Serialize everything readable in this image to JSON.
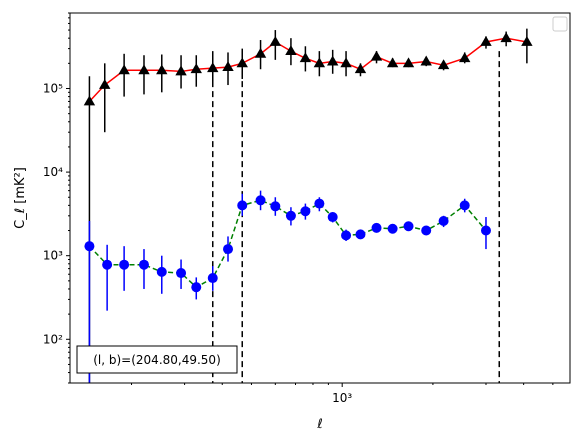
{
  "chart_data": {
    "type": "line",
    "xlabel": "ℓ",
    "ylabel": "C_ℓ  [mK²]",
    "xscale": "log",
    "yscale": "log",
    "xlim": [
      125,
      5700
    ],
    "ylim": [
      30,
      800000
    ],
    "x_ticks": [
      {
        "value": 1000,
        "label": "10³"
      }
    ],
    "y_ticks": [
      {
        "value": 100,
        "label": "10²"
      },
      {
        "value": 1000,
        "label": "10³"
      },
      {
        "value": 10000,
        "label": "10⁴"
      },
      {
        "value": 100000,
        "label": "10⁵"
      }
    ],
    "grid": false,
    "legend": "top-right, empty",
    "annotation": "(l, b)=(204.80,49.50)",
    "vlines": [
      372,
      466,
      3320
    ],
    "series": [
      {
        "color": "#ff0000",
        "marker": "triangle",
        "marker_color": "#000000",
        "errorbar_color": "#000000",
        "line_style": "solid",
        "points": [
          {
            "x": 145,
            "y": 70000,
            "lo": 0,
            "hi": 140000
          },
          {
            "x": 163,
            "y": 110000,
            "lo": 30000,
            "hi": 200000
          },
          {
            "x": 189,
            "y": 165000,
            "lo": 80000,
            "hi": 260000
          },
          {
            "x": 220,
            "y": 165000,
            "lo": 85000,
            "hi": 250000
          },
          {
            "x": 252,
            "y": 165000,
            "lo": 90000,
            "hi": 255000
          },
          {
            "x": 292,
            "y": 160000,
            "lo": 100000,
            "hi": 250000
          },
          {
            "x": 328,
            "y": 170000,
            "lo": 105000,
            "hi": 250000
          },
          {
            "x": 372,
            "y": 175000,
            "lo": 110000,
            "hi": 265000
          },
          {
            "x": 418,
            "y": 180000,
            "lo": 110000,
            "hi": 270000
          },
          {
            "x": 466,
            "y": 200000,
            "lo": 130000,
            "hi": 300000
          },
          {
            "x": 536,
            "y": 260000,
            "lo": 170000,
            "hi": 380000
          },
          {
            "x": 600,
            "y": 360000,
            "lo": 220000,
            "hi": 500000
          },
          {
            "x": 676,
            "y": 280000,
            "lo": 190000,
            "hi": 400000
          },
          {
            "x": 755,
            "y": 230000,
            "lo": 160000,
            "hi": 320000
          },
          {
            "x": 840,
            "y": 200000,
            "lo": 140000,
            "hi": 280000
          },
          {
            "x": 930,
            "y": 210000,
            "lo": 150000,
            "hi": 290000
          },
          {
            "x": 1030,
            "y": 200000,
            "lo": 140000,
            "hi": 280000
          },
          {
            "x": 1150,
            "y": 170000,
            "lo": 140000,
            "hi": 200000
          },
          {
            "x": 1300,
            "y": 240000,
            "lo": 200000,
            "hi": 280000
          },
          {
            "x": 1470,
            "y": 200000,
            "lo": 180000,
            "hi": 230000
          },
          {
            "x": 1660,
            "y": 200000,
            "lo": 180000,
            "hi": 220000
          },
          {
            "x": 1900,
            "y": 210000,
            "lo": 185000,
            "hi": 235000
          },
          {
            "x": 2170,
            "y": 190000,
            "lo": 165000,
            "hi": 215000
          },
          {
            "x": 2550,
            "y": 230000,
            "lo": 200000,
            "hi": 270000
          },
          {
            "x": 3000,
            "y": 360000,
            "lo": 300000,
            "hi": 420000
          },
          {
            "x": 3500,
            "y": 400000,
            "lo": 320000,
            "hi": 480000
          },
          {
            "x": 4100,
            "y": 360000,
            "lo": 200000,
            "hi": 520000
          }
        ]
      },
      {
        "color": "#008000",
        "marker": "circle",
        "marker_color": "#0000ff",
        "errorbar_color": "#0000ff",
        "line_style": "dashed",
        "points": [
          {
            "x": 145,
            "y": 1300,
            "lo": 0,
            "hi": 2600
          },
          {
            "x": 166,
            "y": 780,
            "lo": 220,
            "hi": 1350
          },
          {
            "x": 189,
            "y": 780,
            "lo": 380,
            "hi": 1300
          },
          {
            "x": 220,
            "y": 780,
            "lo": 400,
            "hi": 1200
          },
          {
            "x": 252,
            "y": 640,
            "lo": 350,
            "hi": 1000
          },
          {
            "x": 292,
            "y": 620,
            "lo": 400,
            "hi": 900
          },
          {
            "x": 328,
            "y": 420,
            "lo": 300,
            "hi": 550
          },
          {
            "x": 372,
            "y": 540,
            "lo": 380,
            "hi": 750
          },
          {
            "x": 418,
            "y": 1200,
            "lo": 850,
            "hi": 1700
          },
          {
            "x": 466,
            "y": 4000,
            "lo": 3000,
            "hi": 5500
          },
          {
            "x": 536,
            "y": 4600,
            "lo": 3500,
            "hi": 6000
          },
          {
            "x": 600,
            "y": 3900,
            "lo": 3000,
            "hi": 5000
          },
          {
            "x": 676,
            "y": 3000,
            "lo": 2300,
            "hi": 3800
          },
          {
            "x": 755,
            "y": 3400,
            "lo": 2700,
            "hi": 4200
          },
          {
            "x": 840,
            "y": 4200,
            "lo": 3400,
            "hi": 5000
          },
          {
            "x": 930,
            "y": 2900,
            "lo": 2500,
            "hi": 3300
          },
          {
            "x": 1030,
            "y": 1750,
            "lo": 1500,
            "hi": 2050
          },
          {
            "x": 1150,
            "y": 1800,
            "lo": 1600,
            "hi": 2000
          },
          {
            "x": 1300,
            "y": 2150,
            "lo": 1950,
            "hi": 2350
          },
          {
            "x": 1470,
            "y": 2100,
            "lo": 1900,
            "hi": 2300
          },
          {
            "x": 1660,
            "y": 2250,
            "lo": 2000,
            "hi": 2500
          },
          {
            "x": 1900,
            "y": 2000,
            "lo": 1800,
            "hi": 2250
          },
          {
            "x": 2170,
            "y": 2600,
            "lo": 2200,
            "hi": 3000
          },
          {
            "x": 2550,
            "y": 4000,
            "lo": 3300,
            "hi": 4800
          },
          {
            "x": 3000,
            "y": 2000,
            "lo": 1200,
            "hi": 2900
          }
        ]
      }
    ]
  }
}
